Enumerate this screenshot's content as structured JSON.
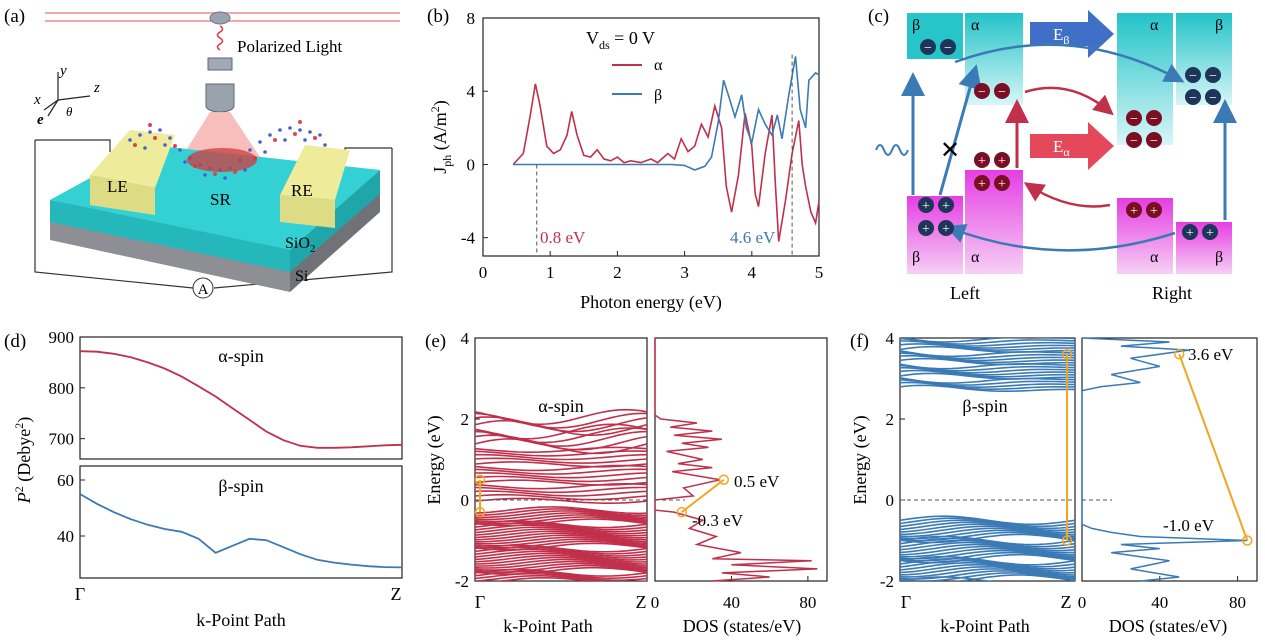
{
  "panels": {
    "a": {
      "label": "(a)",
      "light_label": "Polarized Light",
      "axis_y": "y",
      "axis_x": "x",
      "axis_z": "z",
      "axis_e": "e",
      "axis_theta": "θ",
      "electrode_left": "LE",
      "electrode_right": "RE",
      "scattering_region": "SR",
      "layer_oxide": "SiO",
      "layer_oxide_sub": "2",
      "layer_substrate": "Si",
      "ammeter": "A"
    },
    "c": {
      "label": "(c)",
      "beta": "β",
      "alpha": "α",
      "field_beta": "E",
      "field_beta_sub": "β",
      "field_alpha": "E",
      "field_alpha_sub": "α",
      "left": "Left",
      "right": "Right",
      "blocked": "✕",
      "electron": "−",
      "hole": "+"
    }
  },
  "colors": {
    "alpha": "#c0304a",
    "beta": "#3a7ab5",
    "cyan": "#27c4c9",
    "magenta": "#e23be0",
    "orange": "#f2a51e",
    "electrode": "#e4e18a",
    "navy": "#1d3559",
    "maroon": "#7a0f24"
  },
  "chart_data": [
    {
      "id": "b",
      "label": "(b)",
      "type": "line",
      "annotation_main": "V",
      "annotation_sub": "ds",
      "annotation_rest": " = 0 V",
      "xlabel": "Photon energy (eV)",
      "ylabel_main": "J",
      "ylabel_sub": "ph",
      "ylabel_rest": " (A/m",
      "ylabel_sup": "2",
      "ylabel_close": ")",
      "xlim": [
        0,
        5
      ],
      "ylim": [
        -5,
        8
      ],
      "xticks": [
        "0",
        "1",
        "2",
        "3",
        "4",
        "5"
      ],
      "yticks": [
        "-4",
        "0",
        "4",
        "8"
      ],
      "xtick_values": [
        0,
        1,
        2,
        3,
        4,
        5
      ],
      "ytick_values": [
        -4,
        0,
        4,
        8
      ],
      "legend": [
        "α",
        "β"
      ],
      "marker_alpha": "0.8 eV",
      "marker_beta": "4.6 eV",
      "marker_alpha_x": 0.8,
      "marker_beta_x": 4.6,
      "series": [
        {
          "name": "α",
          "color": "#c0304a",
          "points": [
            [
              0.45,
              0
            ],
            [
              0.6,
              0.6
            ],
            [
              0.7,
              2.6
            ],
            [
              0.78,
              4.4
            ],
            [
              0.85,
              3.2
            ],
            [
              0.95,
              1.0
            ],
            [
              1.05,
              0.6
            ],
            [
              1.15,
              0.8
            ],
            [
              1.25,
              1.6
            ],
            [
              1.32,
              2.9
            ],
            [
              1.4,
              1.6
            ],
            [
              1.5,
              0.5
            ],
            [
              1.6,
              0.4
            ],
            [
              1.7,
              0.8
            ],
            [
              1.8,
              0.3
            ],
            [
              1.9,
              0.2
            ],
            [
              2.0,
              0.4
            ],
            [
              2.1,
              0.1
            ],
            [
              2.2,
              0.2
            ],
            [
              2.35,
              0.1
            ],
            [
              2.5,
              0.3
            ],
            [
              2.6,
              0.1
            ],
            [
              2.75,
              0.6
            ],
            [
              2.85,
              0.3
            ],
            [
              2.95,
              1.4
            ],
            [
              3.05,
              0.7
            ],
            [
              3.15,
              1.0
            ],
            [
              3.25,
              2.2
            ],
            [
              3.35,
              1.5
            ],
            [
              3.45,
              3.2
            ],
            [
              3.55,
              2.0
            ],
            [
              3.62,
              -1.2
            ],
            [
              3.7,
              -2.6
            ],
            [
              3.8,
              -0.6
            ],
            [
              3.9,
              2.8
            ],
            [
              4.0,
              1.0
            ],
            [
              4.05,
              -1.6
            ],
            [
              4.1,
              -2.3
            ],
            [
              4.2,
              0.6
            ],
            [
              4.3,
              2.7
            ],
            [
              4.35,
              -1.0
            ],
            [
              4.4,
              -4.2
            ],
            [
              4.5,
              -2.0
            ],
            [
              4.6,
              0.6
            ],
            [
              4.7,
              2.4
            ],
            [
              4.75,
              0.0
            ],
            [
              4.8,
              -1.2
            ],
            [
              4.88,
              -2.6
            ],
            [
              4.95,
              -3.2
            ],
            [
              5.0,
              -2.0
            ]
          ]
        },
        {
          "name": "β",
          "color": "#3a7ab5",
          "points": [
            [
              0.45,
              0
            ],
            [
              1.0,
              0
            ],
            [
              2.0,
              0
            ],
            [
              2.8,
              0
            ],
            [
              3.0,
              -0.05
            ],
            [
              3.15,
              -0.3
            ],
            [
              3.3,
              -0.1
            ],
            [
              3.4,
              0.4
            ],
            [
              3.5,
              2.3
            ],
            [
              3.58,
              4.6
            ],
            [
              3.65,
              3.8
            ],
            [
              3.75,
              2.6
            ],
            [
              3.85,
              3.8
            ],
            [
              3.92,
              2.0
            ],
            [
              4.0,
              1.2
            ],
            [
              4.1,
              3.0
            ],
            [
              4.2,
              2.2
            ],
            [
              4.3,
              1.6
            ],
            [
              4.38,
              2.7
            ],
            [
              4.45,
              1.4
            ],
            [
              4.55,
              3.8
            ],
            [
              4.65,
              5.9
            ],
            [
              4.72,
              3.0
            ],
            [
              4.8,
              2.0
            ],
            [
              4.85,
              4.6
            ],
            [
              4.95,
              5.0
            ],
            [
              5.0,
              4.9
            ]
          ]
        }
      ]
    },
    {
      "id": "d",
      "label": "(d)",
      "type": "line",
      "xlabel": "k-Point Path",
      "ylabel_main": "P",
      "ylabel_sup": "2",
      "ylabel_rest": " (Debye",
      "ylabel_sup2": "2",
      "ylabel_close": ")",
      "xticks": [
        "Γ",
        "Z"
      ],
      "subplots": [
        {
          "title": "α-spin",
          "color": "#c0304a",
          "ylim": [
            660,
            900
          ],
          "yticks": [
            "700",
            "800",
            "900"
          ],
          "ytick_values": [
            700,
            800,
            900
          ],
          "values": [
            872,
            871,
            867,
            860,
            850,
            838,
            822,
            803,
            783,
            760,
            737,
            714,
            697,
            686,
            682,
            682,
            683,
            685,
            687,
            688
          ]
        },
        {
          "title": "β-spin",
          "color": "#3a7ab5",
          "ylim": [
            25,
            65
          ],
          "yticks": [
            "40",
            "60"
          ],
          "ytick_values": [
            40,
            60
          ],
          "values": [
            55,
            51.5,
            48.5,
            46,
            44,
            42.5,
            41.5,
            39,
            34,
            36.5,
            39,
            38.5,
            36,
            33.5,
            31.5,
            30.5,
            29.8,
            29.2,
            28.9,
            28.8
          ]
        }
      ]
    },
    {
      "id": "e",
      "label": "(e)",
      "type": "line",
      "title": "α-spin",
      "color": "#c0304a",
      "xlabel_bands": "k-Point Path",
      "xlabel_dos": "DOS (states/eV)",
      "ylabel": "Energy (eV)",
      "ylim": [
        -2,
        4
      ],
      "yticks": [
        "-2",
        "0",
        "2",
        "4"
      ],
      "ytick_values": [
        -2,
        0,
        2,
        4
      ],
      "band_xticks": [
        "Γ",
        "Z"
      ],
      "dos_xticks": [
        "0",
        "40",
        "80"
      ],
      "dos_xtick_values": [
        0,
        40,
        80
      ],
      "dos_xlim": [
        0,
        90
      ],
      "transition_from": "-0.3 eV",
      "transition_to": "0.5 eV",
      "transition_from_value": -0.3,
      "transition_to_value": 0.5,
      "dos_points": [
        [
          0,
          4
        ],
        [
          0,
          2.1
        ],
        [
          3,
          2.0
        ],
        [
          22,
          1.9
        ],
        [
          8,
          1.8
        ],
        [
          30,
          1.7
        ],
        [
          10,
          1.6
        ],
        [
          35,
          1.5
        ],
        [
          14,
          1.4
        ],
        [
          28,
          1.3
        ],
        [
          6,
          1.2
        ],
        [
          25,
          1.0
        ],
        [
          12,
          0.9
        ],
        [
          30,
          0.8
        ],
        [
          9,
          0.7
        ],
        [
          34,
          0.5
        ],
        [
          15,
          0.3
        ],
        [
          20,
          0.1
        ],
        [
          0,
          0
        ],
        [
          0,
          -0.25
        ],
        [
          10,
          -0.3
        ],
        [
          25,
          -0.5
        ],
        [
          18,
          -0.7
        ],
        [
          32,
          -0.9
        ],
        [
          22,
          -1.1
        ],
        [
          45,
          -1.3
        ],
        [
          30,
          -1.45
        ],
        [
          82,
          -1.5
        ],
        [
          40,
          -1.6
        ],
        [
          85,
          -1.7
        ],
        [
          35,
          -1.8
        ],
        [
          60,
          -1.9
        ],
        [
          30,
          -2.0
        ]
      ]
    },
    {
      "id": "f",
      "label": "(f)",
      "type": "line",
      "title": "β-spin",
      "color": "#3a7ab5",
      "xlabel_bands": "k-Point Path",
      "xlabel_dos": "DOS (states/eV)",
      "ylabel": "Energy (eV)",
      "ylim": [
        -2,
        4
      ],
      "yticks": [
        "-2",
        "0",
        "2",
        "4"
      ],
      "ytick_values": [
        -2,
        0,
        2,
        4
      ],
      "band_xticks": [
        "Γ",
        "Z"
      ],
      "dos_xticks": [
        "0",
        "40",
        "80"
      ],
      "dos_xtick_values": [
        0,
        40,
        80
      ],
      "dos_xlim": [
        0,
        90
      ],
      "transition_from": "-1.0 eV",
      "transition_to": "3.6 eV",
      "transition_from_value": -1.0,
      "transition_to_value": 3.6,
      "dos_points": [
        [
          0,
          4
        ],
        [
          45,
          3.9
        ],
        [
          20,
          3.8
        ],
        [
          55,
          3.7
        ],
        [
          25,
          3.5
        ],
        [
          40,
          3.3
        ],
        [
          15,
          3.1
        ],
        [
          30,
          2.9
        ],
        [
          10,
          2.8
        ],
        [
          0,
          2.7
        ],
        [
          0,
          -0.6
        ],
        [
          5,
          -0.7
        ],
        [
          15,
          -0.8
        ],
        [
          30,
          -0.9
        ],
        [
          85,
          -1.0
        ],
        [
          20,
          -1.1
        ],
        [
          40,
          -1.2
        ],
        [
          15,
          -1.3
        ],
        [
          45,
          -1.5
        ],
        [
          25,
          -1.7
        ],
        [
          50,
          -1.9
        ],
        [
          30,
          -2.0
        ]
      ]
    }
  ]
}
